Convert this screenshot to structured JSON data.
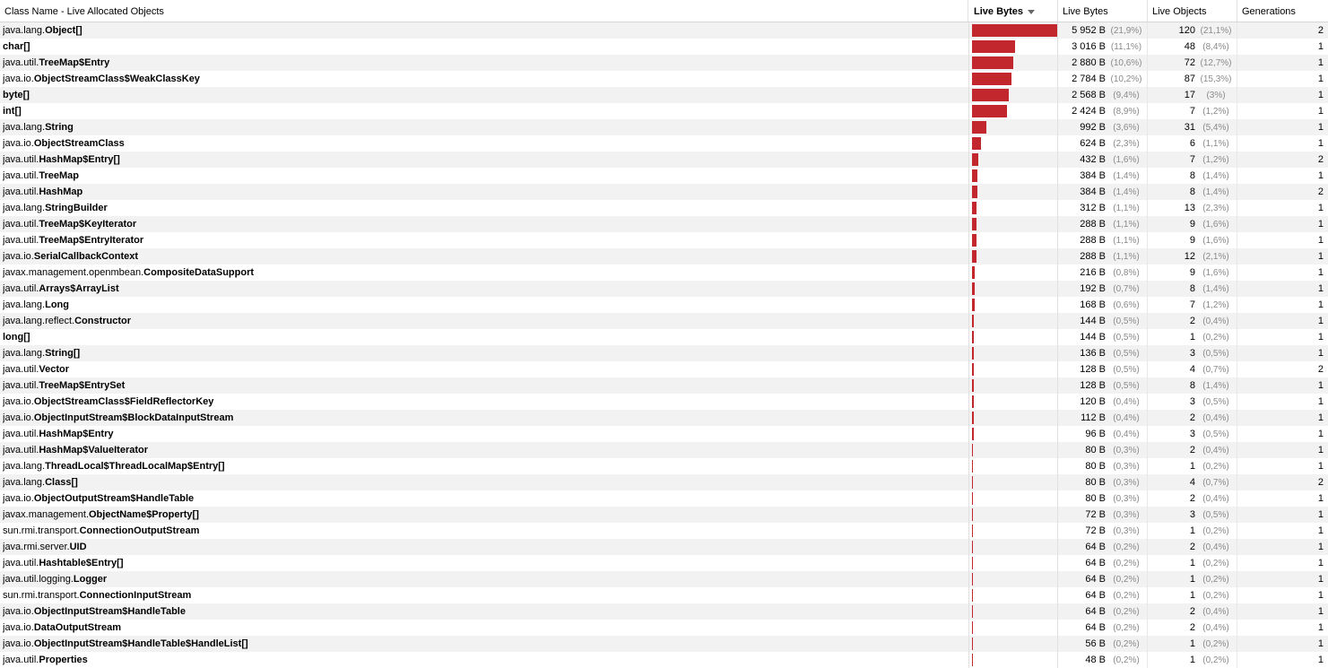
{
  "header": {
    "class_name": "Class Name - Live Allocated Objects",
    "live_bytes_bar": "Live Bytes",
    "live_bytes": "Live Bytes",
    "live_objects": "Live Objects",
    "generations": "Generations"
  },
  "colors": {
    "bar": "#c1272d",
    "stripe": "#f2f2f2"
  },
  "bar_max_bytes": 5952,
  "rows": [
    {
      "pkg": "java.lang.",
      "cls": "Object[]",
      "bytes_value": 5952,
      "bytes": "5 952 B",
      "bytes_pct": "(21,9%)",
      "objects": "120",
      "objects_pct": "(21,1%)",
      "gen": "2"
    },
    {
      "pkg": "",
      "cls": "char[]",
      "bytes_value": 3016,
      "bytes": "3 016 B",
      "bytes_pct": "(11,1%)",
      "objects": "48",
      "objects_pct": "(8,4%)",
      "gen": "1"
    },
    {
      "pkg": "java.util.",
      "cls": "TreeMap$Entry",
      "bytes_value": 2880,
      "bytes": "2 880 B",
      "bytes_pct": "(10,6%)",
      "objects": "72",
      "objects_pct": "(12,7%)",
      "gen": "1"
    },
    {
      "pkg": "java.io.",
      "cls": "ObjectStreamClass$WeakClassKey",
      "bytes_value": 2784,
      "bytes": "2 784 B",
      "bytes_pct": "(10,2%)",
      "objects": "87",
      "objects_pct": "(15,3%)",
      "gen": "1"
    },
    {
      "pkg": "",
      "cls": "byte[]",
      "bytes_value": 2568,
      "bytes": "2 568 B",
      "bytes_pct": "(9,4%)",
      "objects": "17",
      "objects_pct": "(3%)",
      "gen": "1"
    },
    {
      "pkg": "",
      "cls": "int[]",
      "bytes_value": 2424,
      "bytes": "2 424 B",
      "bytes_pct": "(8,9%)",
      "objects": "7",
      "objects_pct": "(1,2%)",
      "gen": "1"
    },
    {
      "pkg": "java.lang.",
      "cls": "String",
      "bytes_value": 992,
      "bytes": "992 B",
      "bytes_pct": "(3,6%)",
      "objects": "31",
      "objects_pct": "(5,4%)",
      "gen": "1"
    },
    {
      "pkg": "java.io.",
      "cls": "ObjectStreamClass",
      "bytes_value": 624,
      "bytes": "624 B",
      "bytes_pct": "(2,3%)",
      "objects": "6",
      "objects_pct": "(1,1%)",
      "gen": "1"
    },
    {
      "pkg": "java.util.",
      "cls": "HashMap$Entry[]",
      "bytes_value": 432,
      "bytes": "432 B",
      "bytes_pct": "(1,6%)",
      "objects": "7",
      "objects_pct": "(1,2%)",
      "gen": "2"
    },
    {
      "pkg": "java.util.",
      "cls": "TreeMap",
      "bytes_value": 384,
      "bytes": "384 B",
      "bytes_pct": "(1,4%)",
      "objects": "8",
      "objects_pct": "(1,4%)",
      "gen": "1"
    },
    {
      "pkg": "java.util.",
      "cls": "HashMap",
      "bytes_value": 384,
      "bytes": "384 B",
      "bytes_pct": "(1,4%)",
      "objects": "8",
      "objects_pct": "(1,4%)",
      "gen": "2"
    },
    {
      "pkg": "java.lang.",
      "cls": "StringBuilder",
      "bytes_value": 312,
      "bytes": "312 B",
      "bytes_pct": "(1,1%)",
      "objects": "13",
      "objects_pct": "(2,3%)",
      "gen": "1"
    },
    {
      "pkg": "java.util.",
      "cls": "TreeMap$KeyIterator",
      "bytes_value": 288,
      "bytes": "288 B",
      "bytes_pct": "(1,1%)",
      "objects": "9",
      "objects_pct": "(1,6%)",
      "gen": "1"
    },
    {
      "pkg": "java.util.",
      "cls": "TreeMap$EntryIterator",
      "bytes_value": 288,
      "bytes": "288 B",
      "bytes_pct": "(1,1%)",
      "objects": "9",
      "objects_pct": "(1,6%)",
      "gen": "1"
    },
    {
      "pkg": "java.io.",
      "cls": "SerialCallbackContext",
      "bytes_value": 288,
      "bytes": "288 B",
      "bytes_pct": "(1,1%)",
      "objects": "12",
      "objects_pct": "(2,1%)",
      "gen": "1"
    },
    {
      "pkg": "javax.management.openmbean.",
      "cls": "CompositeDataSupport",
      "bytes_value": 216,
      "bytes": "216 B",
      "bytes_pct": "(0,8%)",
      "objects": "9",
      "objects_pct": "(1,6%)",
      "gen": "1"
    },
    {
      "pkg": "java.util.",
      "cls": "Arrays$ArrayList",
      "bytes_value": 192,
      "bytes": "192 B",
      "bytes_pct": "(0,7%)",
      "objects": "8",
      "objects_pct": "(1,4%)",
      "gen": "1"
    },
    {
      "pkg": "java.lang.",
      "cls": "Long",
      "bytes_value": 168,
      "bytes": "168 B",
      "bytes_pct": "(0,6%)",
      "objects": "7",
      "objects_pct": "(1,2%)",
      "gen": "1"
    },
    {
      "pkg": "java.lang.reflect.",
      "cls": "Constructor",
      "bytes_value": 144,
      "bytes": "144 B",
      "bytes_pct": "(0,5%)",
      "objects": "2",
      "objects_pct": "(0,4%)",
      "gen": "1"
    },
    {
      "pkg": "",
      "cls": "long[]",
      "bytes_value": 144,
      "bytes": "144 B",
      "bytes_pct": "(0,5%)",
      "objects": "1",
      "objects_pct": "(0,2%)",
      "gen": "1"
    },
    {
      "pkg": "java.lang.",
      "cls": "String[]",
      "bytes_value": 136,
      "bytes": "136 B",
      "bytes_pct": "(0,5%)",
      "objects": "3",
      "objects_pct": "(0,5%)",
      "gen": "1"
    },
    {
      "pkg": "java.util.",
      "cls": "Vector",
      "bytes_value": 128,
      "bytes": "128 B",
      "bytes_pct": "(0,5%)",
      "objects": "4",
      "objects_pct": "(0,7%)",
      "gen": "2"
    },
    {
      "pkg": "java.util.",
      "cls": "TreeMap$EntrySet",
      "bytes_value": 128,
      "bytes": "128 B",
      "bytes_pct": "(0,5%)",
      "objects": "8",
      "objects_pct": "(1,4%)",
      "gen": "1"
    },
    {
      "pkg": "java.io.",
      "cls": "ObjectStreamClass$FieldReflectorKey",
      "bytes_value": 120,
      "bytes": "120 B",
      "bytes_pct": "(0,4%)",
      "objects": "3",
      "objects_pct": "(0,5%)",
      "gen": "1"
    },
    {
      "pkg": "java.io.",
      "cls": "ObjectInputStream$BlockDataInputStream",
      "bytes_value": 112,
      "bytes": "112 B",
      "bytes_pct": "(0,4%)",
      "objects": "2",
      "objects_pct": "(0,4%)",
      "gen": "1"
    },
    {
      "pkg": "java.util.",
      "cls": "HashMap$Entry",
      "bytes_value": 96,
      "bytes": "96 B",
      "bytes_pct": "(0,4%)",
      "objects": "3",
      "objects_pct": "(0,5%)",
      "gen": "1"
    },
    {
      "pkg": "java.util.",
      "cls": "HashMap$ValueIterator",
      "bytes_value": 80,
      "bytes": "80 B",
      "bytes_pct": "(0,3%)",
      "objects": "2",
      "objects_pct": "(0,4%)",
      "gen": "1"
    },
    {
      "pkg": "java.lang.",
      "cls": "ThreadLocal$ThreadLocalMap$Entry[]",
      "bytes_value": 80,
      "bytes": "80 B",
      "bytes_pct": "(0,3%)",
      "objects": "1",
      "objects_pct": "(0,2%)",
      "gen": "1"
    },
    {
      "pkg": "java.lang.",
      "cls": "Class[]",
      "bytes_value": 80,
      "bytes": "80 B",
      "bytes_pct": "(0,3%)",
      "objects": "4",
      "objects_pct": "(0,7%)",
      "gen": "2"
    },
    {
      "pkg": "java.io.",
      "cls": "ObjectOutputStream$HandleTable",
      "bytes_value": 80,
      "bytes": "80 B",
      "bytes_pct": "(0,3%)",
      "objects": "2",
      "objects_pct": "(0,4%)",
      "gen": "1"
    },
    {
      "pkg": "javax.management.",
      "cls": "ObjectName$Property[]",
      "bytes_value": 72,
      "bytes": "72 B",
      "bytes_pct": "(0,3%)",
      "objects": "3",
      "objects_pct": "(0,5%)",
      "gen": "1"
    },
    {
      "pkg": "sun.rmi.transport.",
      "cls": "ConnectionOutputStream",
      "bytes_value": 72,
      "bytes": "72 B",
      "bytes_pct": "(0,3%)",
      "objects": "1",
      "objects_pct": "(0,2%)",
      "gen": "1"
    },
    {
      "pkg": "java.rmi.server.",
      "cls": "UID",
      "bytes_value": 64,
      "bytes": "64 B",
      "bytes_pct": "(0,2%)",
      "objects": "2",
      "objects_pct": "(0,4%)",
      "gen": "1"
    },
    {
      "pkg": "java.util.",
      "cls": "Hashtable$Entry[]",
      "bytes_value": 64,
      "bytes": "64 B",
      "bytes_pct": "(0,2%)",
      "objects": "1",
      "objects_pct": "(0,2%)",
      "gen": "1"
    },
    {
      "pkg": "java.util.logging.",
      "cls": "Logger",
      "bytes_value": 64,
      "bytes": "64 B",
      "bytes_pct": "(0,2%)",
      "objects": "1",
      "objects_pct": "(0,2%)",
      "gen": "1"
    },
    {
      "pkg": "sun.rmi.transport.",
      "cls": "ConnectionInputStream",
      "bytes_value": 64,
      "bytes": "64 B",
      "bytes_pct": "(0,2%)",
      "objects": "1",
      "objects_pct": "(0,2%)",
      "gen": "1"
    },
    {
      "pkg": "java.io.",
      "cls": "ObjectInputStream$HandleTable",
      "bytes_value": 64,
      "bytes": "64 B",
      "bytes_pct": "(0,2%)",
      "objects": "2",
      "objects_pct": "(0,4%)",
      "gen": "1"
    },
    {
      "pkg": "java.io.",
      "cls": "DataOutputStream",
      "bytes_value": 64,
      "bytes": "64 B",
      "bytes_pct": "(0,2%)",
      "objects": "2",
      "objects_pct": "(0,4%)",
      "gen": "1"
    },
    {
      "pkg": "java.io.",
      "cls": "ObjectInputStream$HandleTable$HandleList[]",
      "bytes_value": 56,
      "bytes": "56 B",
      "bytes_pct": "(0,2%)",
      "objects": "1",
      "objects_pct": "(0,2%)",
      "gen": "1"
    },
    {
      "pkg": "java.util.",
      "cls": "Properties",
      "bytes_value": 48,
      "bytes": "48 B",
      "bytes_pct": "(0,2%)",
      "objects": "1",
      "objects_pct": "(0,2%)",
      "gen": "1"
    }
  ]
}
